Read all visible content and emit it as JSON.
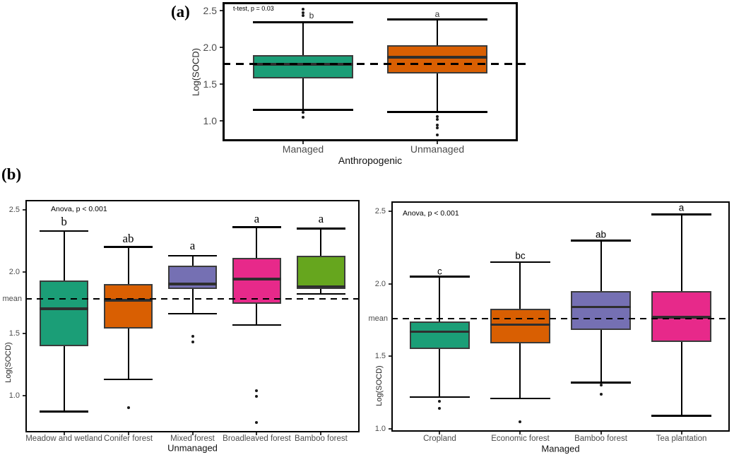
{
  "figure": {
    "panel_a_label": "(a)",
    "panel_b_label": "(b)"
  },
  "colors": {
    "teal": "#1B9E77",
    "orange": "#D95F02",
    "purple": "#7570B3",
    "magenta": "#E7298A",
    "green": "#66A61E",
    "box_stroke": "#3B3B3B",
    "median": "#2E2E2E",
    "axis_text": "#4d4d4d",
    "line": "#000000"
  },
  "chart_data": [
    {
      "id": "panel_a",
      "type": "boxplot",
      "annotation": "t-test, p = 0.03",
      "ylabel": "Log(SOCD)",
      "xlabel": "Anthropogenic",
      "ytick_labels": [
        "2.5",
        "2.0",
        "1.5",
        "1.0"
      ],
      "ylim": [
        0.72,
        2.615
      ],
      "grid": false,
      "mean_line": 1.77,
      "mean_label": "",
      "boxes": [
        {
          "label": "Managed",
          "color": "#1B9E77",
          "letter": "b",
          "whisker_low": 1.15,
          "q1": 1.58,
          "median": 1.77,
          "q3": 1.89,
          "whisker_high": 2.34,
          "outliers": [
            2.52,
            2.47,
            2.43,
            1.11,
            1.05
          ]
        },
        {
          "label": "Unmanaged",
          "color": "#D95F02",
          "letter": "a",
          "whisker_low": 1.12,
          "q1": 1.64,
          "median": 1.86,
          "q3": 2.03,
          "whisker_high": 2.38,
          "outliers": [
            1.06,
            1.02,
            0.94,
            0.9,
            0.81
          ]
        }
      ]
    },
    {
      "id": "b_left",
      "type": "boxplot",
      "annotation": "Anova, p < 0.001",
      "ylabel": "Log(SOCD)",
      "xlabel": "Unmanaged",
      "ytick_labels": [
        "2.5",
        "2.0",
        "1.5",
        "1.0"
      ],
      "ylim": [
        0.7,
        2.58
      ],
      "grid": false,
      "mean_line": 1.78,
      "mean_label": "mean",
      "boxes": [
        {
          "label": "Meadow and wetland",
          "color": "#1B9E77",
          "letter": "b",
          "whisker_low": 0.87,
          "q1": 1.4,
          "median": 1.7,
          "q3": 1.93,
          "whisker_high": 2.33,
          "outliers": []
        },
        {
          "label": "Conifer forest",
          "color": "#D95F02",
          "letter": "ab",
          "whisker_low": 1.13,
          "q1": 1.54,
          "median": 1.77,
          "q3": 1.9,
          "whisker_high": 2.2,
          "outliers": [
            0.9
          ]
        },
        {
          "label": "Mixed forest",
          "color": "#7570B3",
          "letter": "a",
          "whisker_low": 1.66,
          "q1": 1.86,
          "median": 1.9,
          "q3": 2.05,
          "whisker_high": 2.13,
          "outliers": [
            1.48,
            1.43
          ]
        },
        {
          "label": "Broadleaved forest",
          "color": "#E7298A",
          "letter": "a",
          "whisker_low": 1.57,
          "q1": 1.74,
          "median": 1.94,
          "q3": 2.11,
          "whisker_high": 2.36,
          "outliers": [
            1.04,
            0.99,
            0.78
          ]
        },
        {
          "label": "Bamboo forest",
          "color": "#66A61E",
          "letter": "a",
          "whisker_low": 1.82,
          "q1": 1.86,
          "median": 1.88,
          "q3": 2.13,
          "whisker_high": 2.35,
          "outliers": []
        }
      ]
    },
    {
      "id": "b_right",
      "type": "boxplot",
      "annotation": "Anova, p < 0.001",
      "ylabel": "Log(SOCD)",
      "xlabel": "Managed",
      "ytick_labels": [
        "2.5",
        "2.0",
        "1.5",
        "1.0"
      ],
      "ylim": [
        0.98,
        2.57
      ],
      "grid": false,
      "mean_line": 1.76,
      "mean_label": "mean",
      "boxes": [
        {
          "label": "Cropland",
          "color": "#1B9E77",
          "letter": "c",
          "whisker_low": 1.22,
          "q1": 1.55,
          "median": 1.67,
          "q3": 1.74,
          "whisker_high": 2.05,
          "outliers": [
            1.19,
            1.14
          ]
        },
        {
          "label": "Economic forest",
          "color": "#D95F02",
          "letter": "bc",
          "whisker_low": 1.21,
          "q1": 1.59,
          "median": 1.72,
          "q3": 1.83,
          "whisker_high": 2.15,
          "outliers": [
            1.05
          ]
        },
        {
          "label": "Bamboo forest",
          "color": "#7570B3",
          "letter": "ab",
          "whisker_low": 1.32,
          "q1": 1.68,
          "median": 1.84,
          "q3": 1.95,
          "whisker_high": 2.3,
          "outliers": [
            1.3,
            1.24
          ]
        },
        {
          "label": "Tea plantation",
          "color": "#E7298A",
          "letter": "a",
          "whisker_low": 1.09,
          "q1": 1.6,
          "median": 1.77,
          "q3": 1.95,
          "whisker_high": 2.48,
          "outliers": []
        }
      ]
    }
  ]
}
